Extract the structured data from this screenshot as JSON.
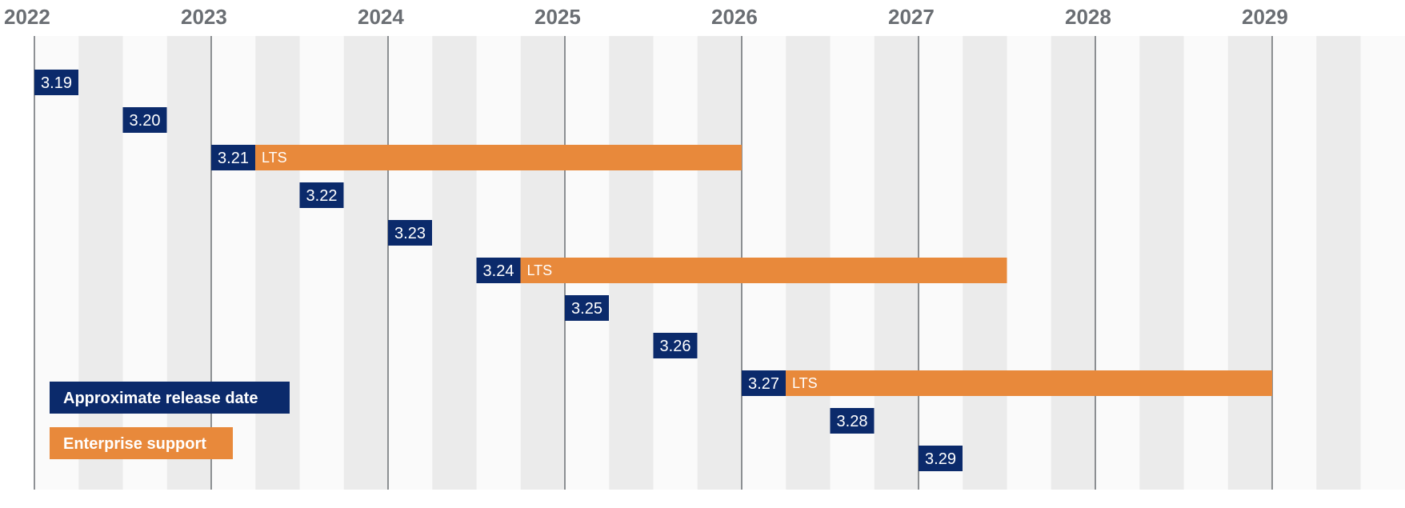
{
  "chart_data": {
    "type": "timeline",
    "x_axis": {
      "tick_labels": [
        "2022",
        "2023",
        "2024",
        "2025",
        "2026",
        "2027",
        "2028",
        "2029"
      ],
      "range": [
        2022.0,
        2029.75
      ]
    },
    "releases": [
      {
        "version": "3.19",
        "release": 2022.0,
        "lts": false
      },
      {
        "version": "3.20",
        "release": 2022.5,
        "lts": false
      },
      {
        "version": "3.21",
        "release": 2023.0,
        "lts": true,
        "support_end": 2026.0
      },
      {
        "version": "3.22",
        "release": 2023.5,
        "lts": false
      },
      {
        "version": "3.23",
        "release": 2024.0,
        "lts": false
      },
      {
        "version": "3.24",
        "release": 2024.5,
        "lts": true,
        "support_end": 2027.5
      },
      {
        "version": "3.25",
        "release": 2025.0,
        "lts": false
      },
      {
        "version": "3.26",
        "release": 2025.5,
        "lts": false
      },
      {
        "version": "3.27",
        "release": 2026.0,
        "lts": true,
        "support_end": 2029.0
      },
      {
        "version": "3.28",
        "release": 2026.5,
        "lts": false
      },
      {
        "version": "3.29",
        "release": 2027.0,
        "lts": false
      }
    ],
    "lts_label": "LTS",
    "legend": {
      "position": "bottom-left",
      "items": [
        {
          "label": "Approximate release date",
          "color": "#0b2a6b"
        },
        {
          "label": "Enterprise support",
          "color": "#e8893b"
        }
      ]
    },
    "colors": {
      "release": "#0b2a6b",
      "support": "#e8893b",
      "stripe_light": "#fafafa",
      "stripe_dark": "#ebebeb",
      "year_line": "#6a6e73",
      "year_text": "#6a6e73"
    }
  }
}
